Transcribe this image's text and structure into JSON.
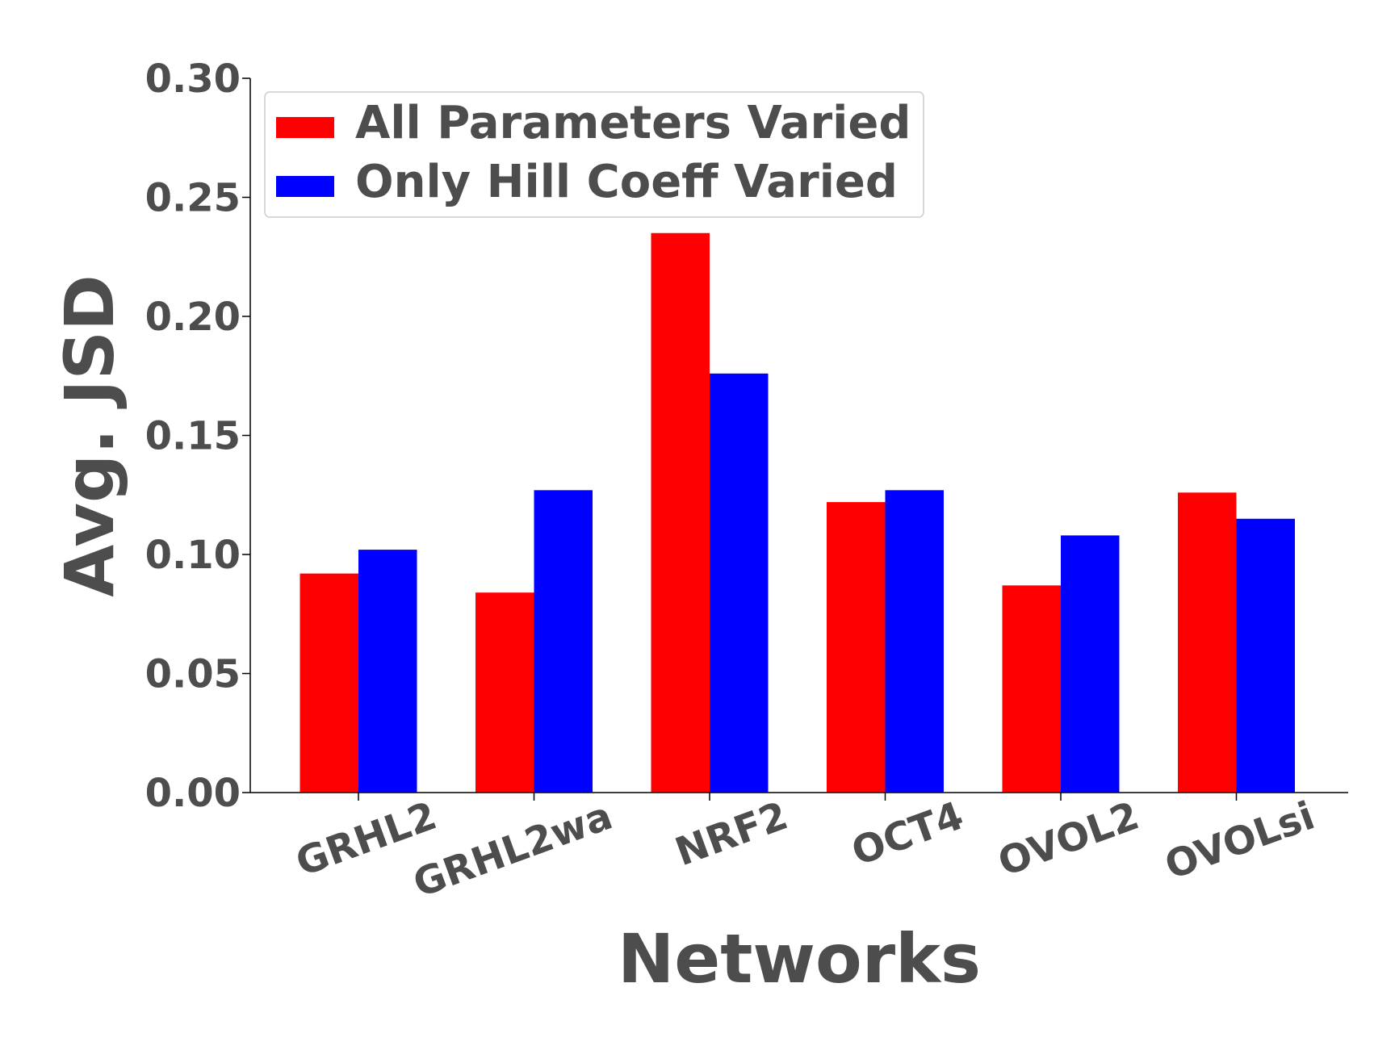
{
  "chart_data": {
    "type": "bar",
    "title": "",
    "xlabel": "Networks",
    "ylabel": "Avg. JSD",
    "ylim": [
      0,
      0.3
    ],
    "yticks": [
      "0.00",
      "0.05",
      "0.10",
      "0.15",
      "0.20",
      "0.25",
      "0.30"
    ],
    "categories": [
      "GRHL2",
      "GRHL2wa",
      "NRF2",
      "OCT4",
      "OVOL2",
      "OVOLsi"
    ],
    "series": [
      {
        "name": "All Parameters Varied",
        "color": "#ff0000",
        "values": [
          0.092,
          0.084,
          0.235,
          0.122,
          0.087,
          0.126
        ]
      },
      {
        "name": "Only Hill Coeff Varied",
        "color": "#0000ff",
        "values": [
          0.102,
          0.127,
          0.176,
          0.127,
          0.108,
          0.115
        ]
      }
    ],
    "legend": "top-left",
    "grid": false
  }
}
